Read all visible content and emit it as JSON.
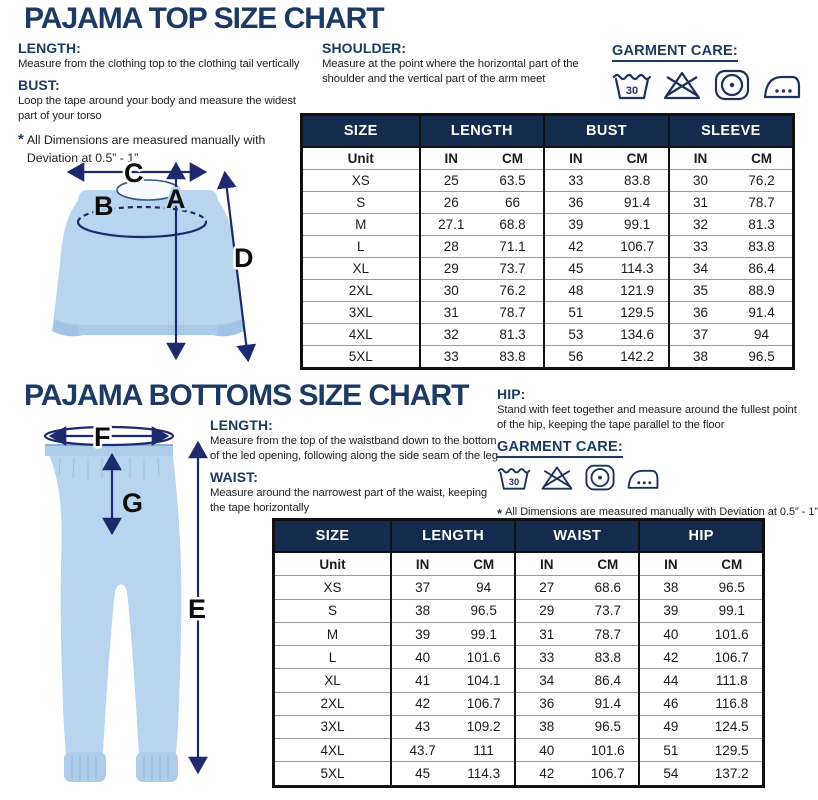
{
  "colors": {
    "heading_navy": "#1c3a63",
    "table_header_navy": "#152b4d",
    "garment_blue": "#b8d4ef",
    "arrow_navy": "#1e2a6e",
    "border_black": "#111111"
  },
  "care_icons": [
    "wash-30-icon",
    "do-not-bleach-icon",
    "tumble-dry-icon",
    "iron-icon"
  ],
  "top_section": {
    "title": "PAJAMA TOP SIZE CHART",
    "length_heading": "LENGTH:",
    "length_desc": "Measure from the clothing top to the clothing tail vertically",
    "bust_heading": "BUST:",
    "bust_desc": "Loop the tape around your body and measure the widest part of your torso",
    "note_star": "*",
    "note": "All Dimensions are measured manually with Deviation at 0.5” - 1”",
    "shoulder_heading": "SHOULDER:",
    "shoulder_desc": "Measure at the point where the horizontal part of the shoulder and the vertical part of the arm meet",
    "garment_care_heading": "GARMENT CARE:",
    "diagram": {
      "a": "A",
      "b": "B",
      "c": "C",
      "d": "D"
    },
    "table": {
      "group_headers": [
        "SIZE",
        "LENGTH",
        "BUST",
        "SLEEVE"
      ],
      "unit_row": [
        "Unit",
        "IN",
        "CM",
        "IN",
        "CM",
        "IN",
        "CM"
      ],
      "rows": [
        [
          "XS",
          "25",
          "63.5",
          "33",
          "83.8",
          "30",
          "76.2"
        ],
        [
          "S",
          "26",
          "66",
          "36",
          "91.4",
          "31",
          "78.7"
        ],
        [
          "M",
          "27.1",
          "68.8",
          "39",
          "99.1",
          "32",
          "81.3"
        ],
        [
          "L",
          "28",
          "71.1",
          "42",
          "106.7",
          "33",
          "83.8"
        ],
        [
          "XL",
          "29",
          "73.7",
          "45",
          "114.3",
          "34",
          "86.4"
        ],
        [
          "2XL",
          "30",
          "76.2",
          "48",
          "121.9",
          "35",
          "88.9"
        ],
        [
          "3XL",
          "31",
          "78.7",
          "51",
          "129.5",
          "36",
          "91.4"
        ],
        [
          "4XL",
          "32",
          "81.3",
          "53",
          "134.6",
          "37",
          "94"
        ],
        [
          "5XL",
          "33",
          "83.8",
          "56",
          "142.2",
          "38",
          "96.5"
        ]
      ]
    }
  },
  "bottom_section": {
    "title": "PAJAMA BOTTOMS SIZE CHART",
    "length_heading": "LENGTH:",
    "length_desc": "Measure from the top of the waistband down to the bottom of the led opening, following along the side seam of the leg",
    "waist_heading": "WAIST:",
    "waist_desc": "Measure around the narrowest part of the waist, keeping the tape horizontally",
    "hip_heading": "HIP:",
    "hip_desc": "Stand with feet together and measure around the fullest point of the hip, keeping the tape parallel to the floor",
    "garment_care_heading": "GARMENT CARE:",
    "note_star": "*",
    "note": "All Dimensions are measured manually with Deviation at 0.5” - 1”",
    "diagram": {
      "e": "E",
      "f": "F",
      "g": "G"
    },
    "table": {
      "group_headers": [
        "SIZE",
        "LENGTH",
        "WAIST",
        "HIP"
      ],
      "unit_row": [
        "Unit",
        "IN",
        "CM",
        "IN",
        "CM",
        "IN",
        "CM"
      ],
      "rows": [
        [
          "XS",
          "37",
          "94",
          "27",
          "68.6",
          "38",
          "96.5"
        ],
        [
          "S",
          "38",
          "96.5",
          "29",
          "73.7",
          "39",
          "99.1"
        ],
        [
          "M",
          "39",
          "99.1",
          "31",
          "78.7",
          "40",
          "101.6"
        ],
        [
          "L",
          "40",
          "101.6",
          "33",
          "83.8",
          "42",
          "106.7"
        ],
        [
          "XL",
          "41",
          "104.1",
          "34",
          "86.4",
          "44",
          "111.8"
        ],
        [
          "2XL",
          "42",
          "106.7",
          "36",
          "91.4",
          "46",
          "116.8"
        ],
        [
          "3XL",
          "43",
          "109.2",
          "38",
          "96.5",
          "49",
          "124.5"
        ],
        [
          "4XL",
          "43.7",
          "111",
          "40",
          "101.6",
          "51",
          "129.5"
        ],
        [
          "5XL",
          "45",
          "114.3",
          "42",
          "106.7",
          "54",
          "137.2"
        ]
      ]
    }
  }
}
